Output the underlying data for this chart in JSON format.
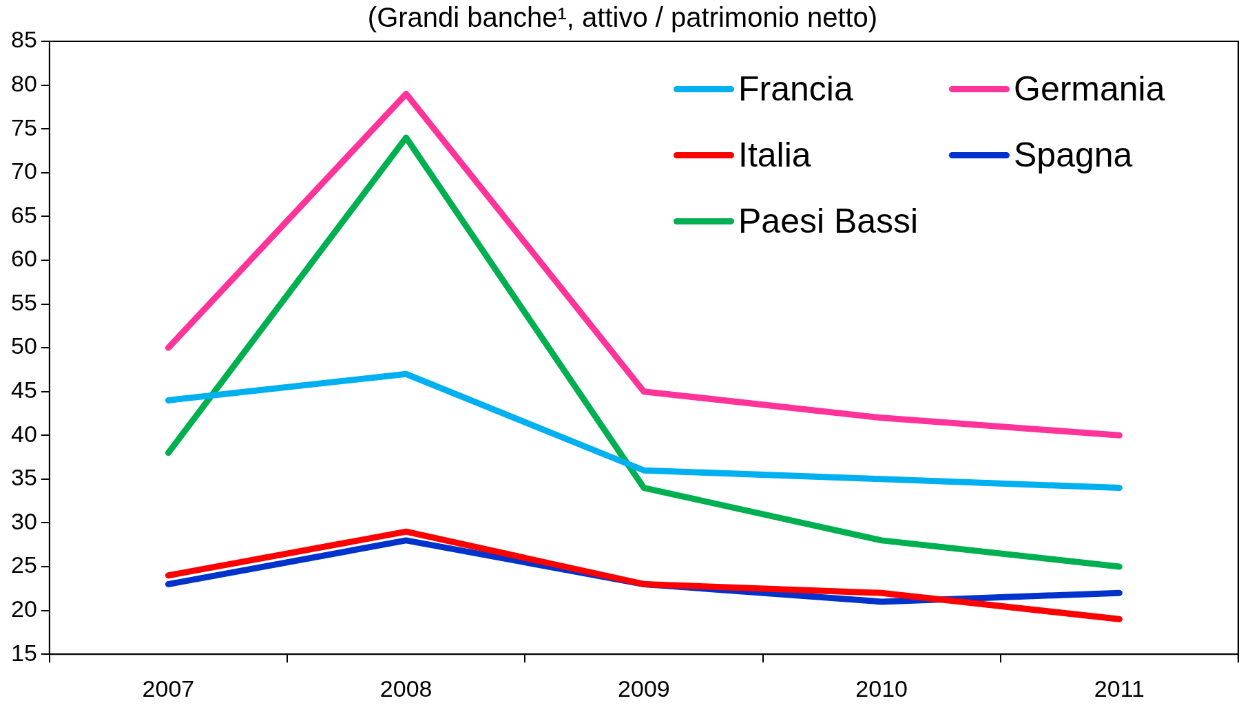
{
  "chart_data": {
    "type": "line",
    "title": "(Grandi banche¹, attivo / patrimonio netto)",
    "categories": [
      "2007",
      "2008",
      "2009",
      "2010",
      "2011"
    ],
    "series": [
      {
        "name": "Francia",
        "color": "#00b0f0",
        "values": [
          44,
          47,
          36,
          35,
          34
        ]
      },
      {
        "name": "Germania",
        "color": "#ff3399",
        "values": [
          50,
          79,
          45,
          42,
          40
        ]
      },
      {
        "name": "Italia",
        "color": "#ff0000",
        "values": [
          24,
          29,
          23,
          22,
          19
        ]
      },
      {
        "name": "Spagna",
        "color": "#0033cc",
        "values": [
          23,
          28,
          23,
          21,
          22
        ]
      },
      {
        "name": "Paesi Bassi",
        "color": "#00b050",
        "values": [
          38,
          74,
          34,
          28,
          25
        ]
      }
    ],
    "ylim": [
      15,
      85
    ],
    "yticks": [
      15,
      20,
      25,
      30,
      35,
      40,
      45,
      50,
      55,
      60,
      65,
      70,
      75,
      80,
      85
    ],
    "grid": false,
    "legend": "top right",
    "marker": "none",
    "line_style": "solid"
  }
}
